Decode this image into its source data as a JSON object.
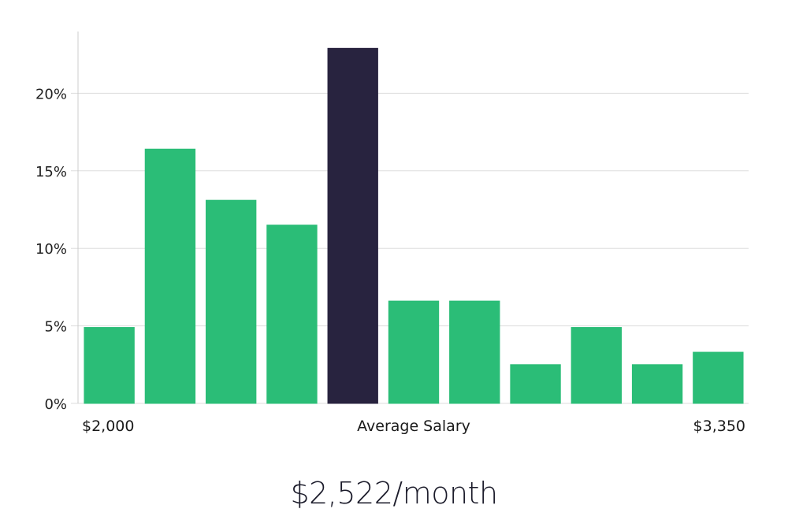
{
  "chart_data": {
    "type": "bar",
    "ylim": [
      0,
      25
    ],
    "yticks": [
      0,
      5,
      10,
      15,
      20
    ],
    "ytick_labels": [
      "0%",
      "5%",
      "10%",
      "15%",
      "20%"
    ],
    "values": [
      4.9,
      16.4,
      13.1,
      11.5,
      22.9,
      6.6,
      6.6,
      2.5,
      4.9,
      2.5,
      3.3
    ],
    "highlight_index": 4,
    "x_start_label": "$2,000",
    "x_middle_label": "Average Salary",
    "x_end_label": "$3,350",
    "grid": true,
    "colors": {
      "bar": "#2bbd77",
      "highlight": "#28233f",
      "grid": "#dddddd",
      "axis": "#cccccc"
    }
  },
  "salary_text": "$2,522/month"
}
